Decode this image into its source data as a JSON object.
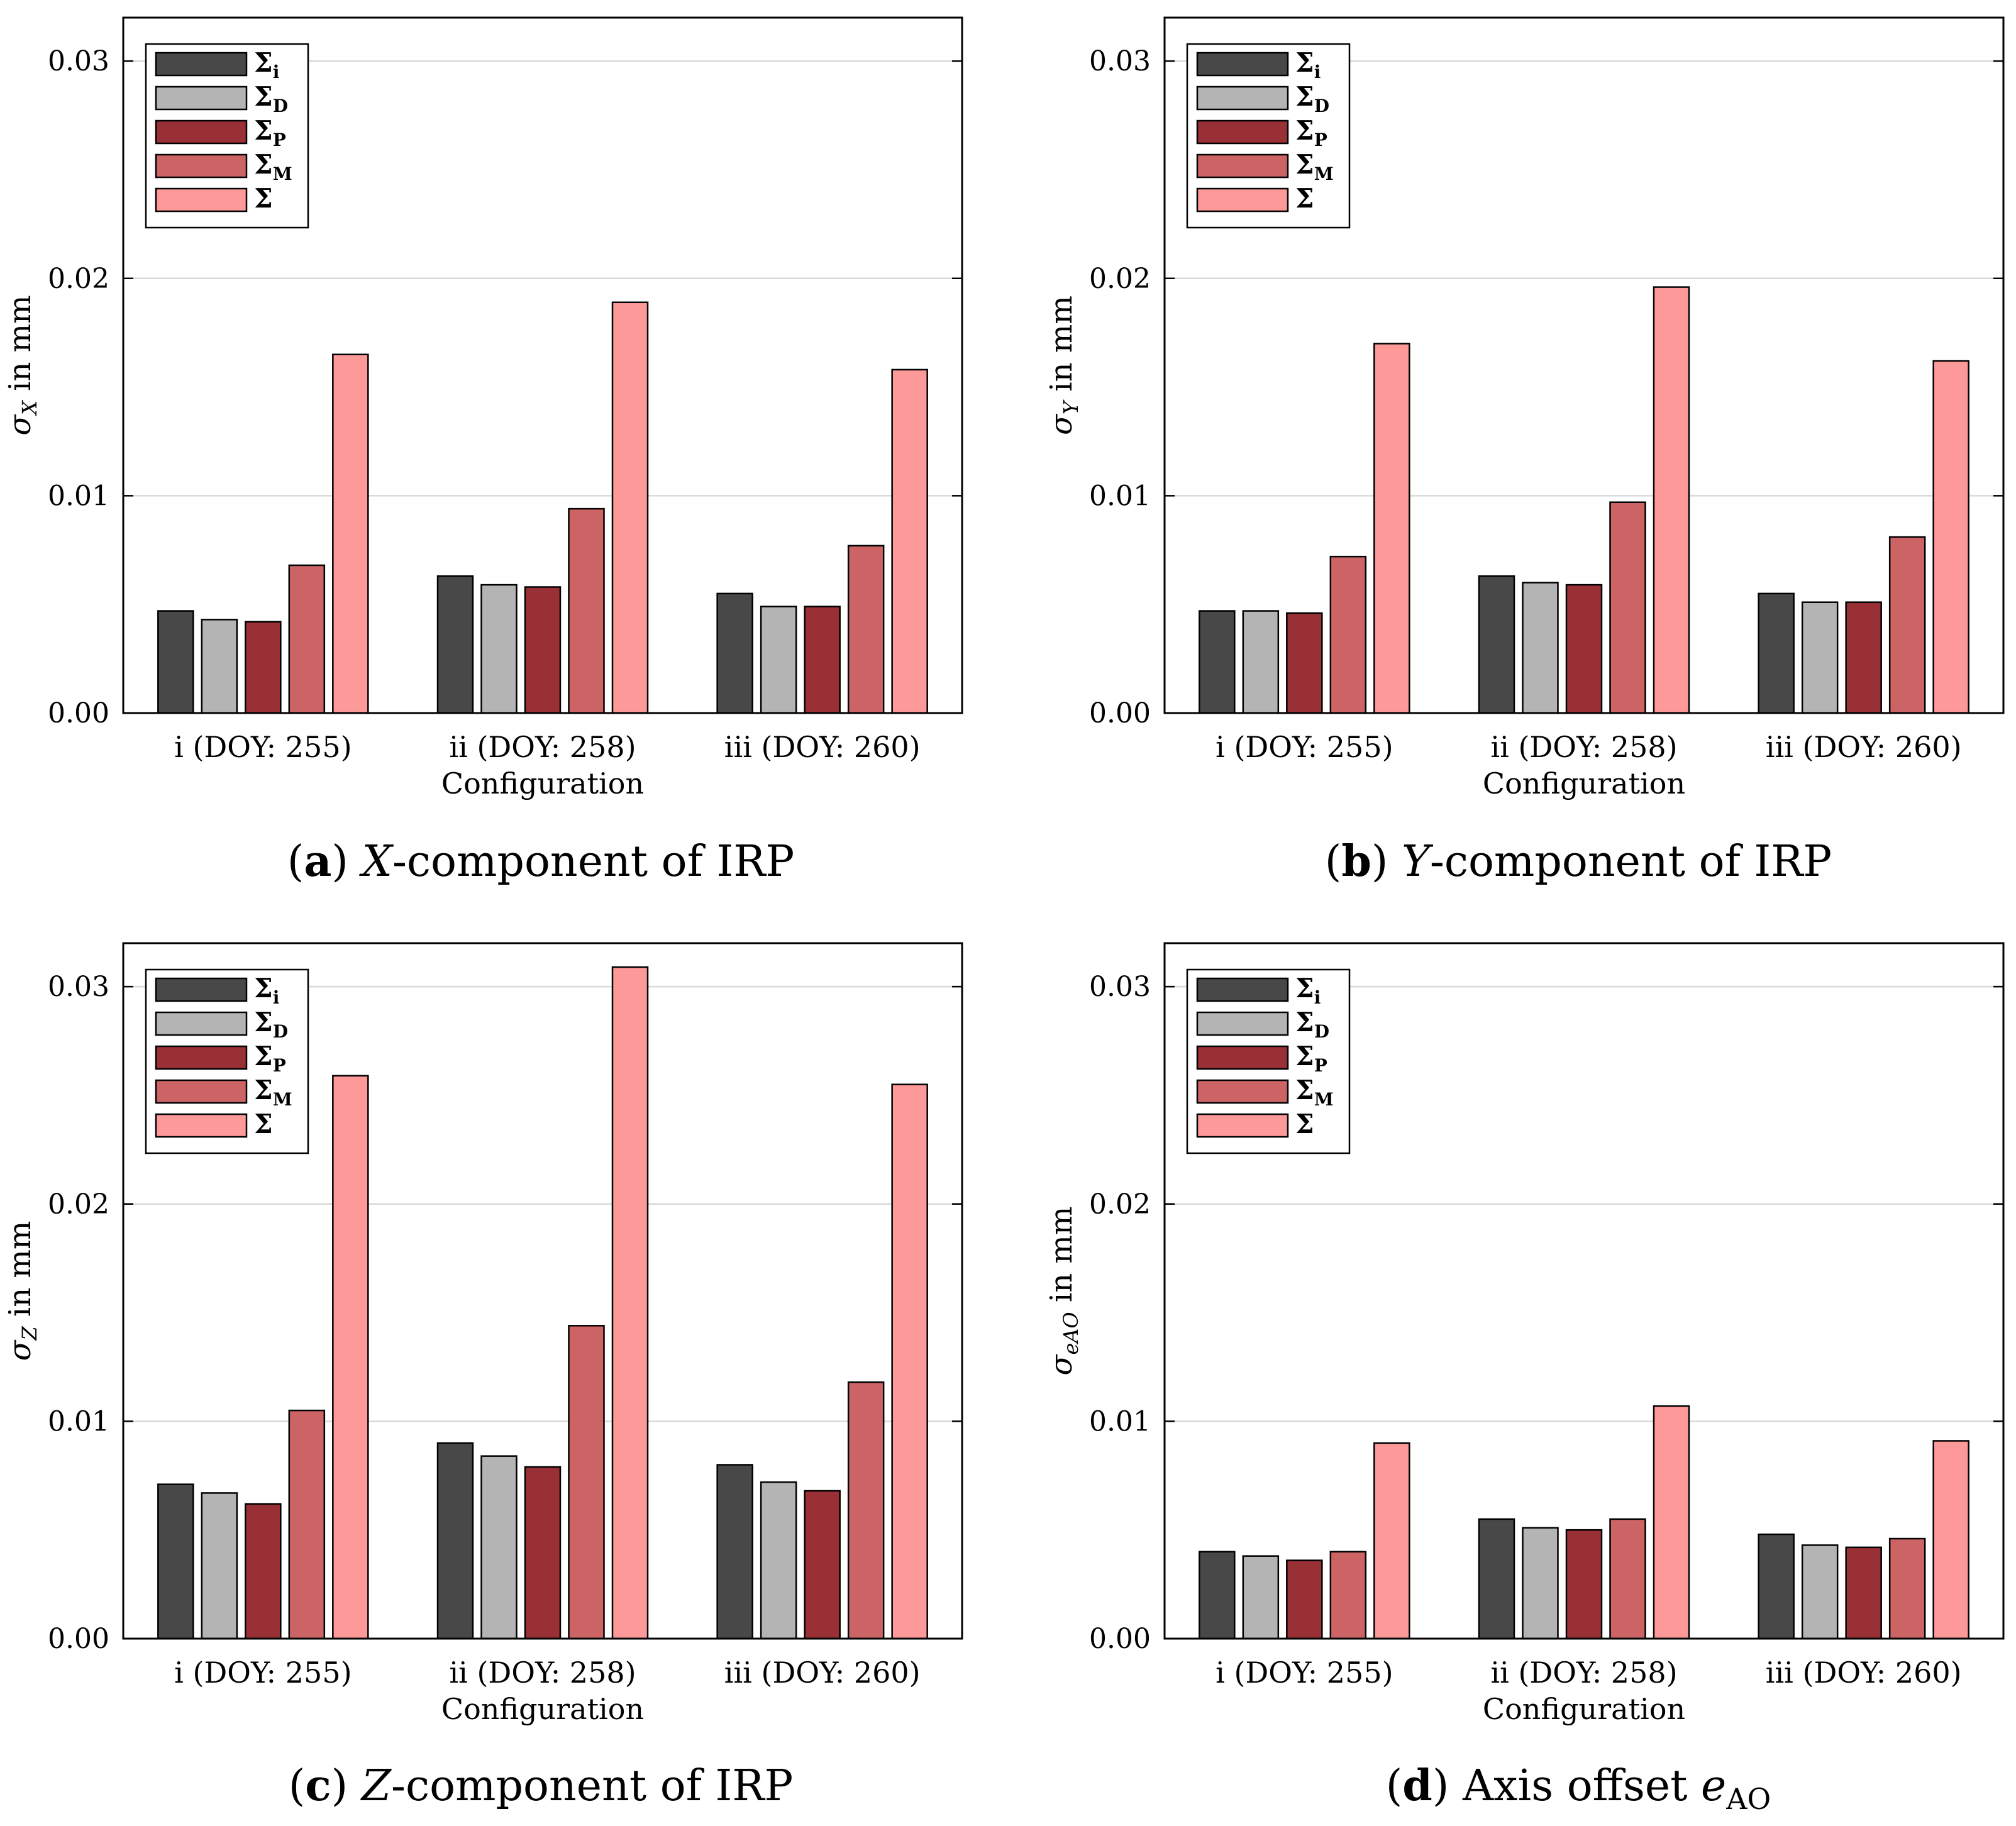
{
  "chart_data": [
    {
      "type": "bar",
      "panel": "a",
      "caption": {
        "letter": "a",
        "variable": "X",
        "rest": "-component of IRP"
      },
      "title": "",
      "xlabel": "Configuration",
      "ylabel": "σ_X in mm",
      "ylabel_symbol": "σ",
      "ylabel_sub": "X",
      "ylabel_rest": " in mm",
      "ylim": [
        0,
        0.032
      ],
      "yticks": [
        "0.00",
        "0.01",
        "0.02",
        "0.03"
      ],
      "categories": [
        "i (DOY: 255)",
        "ii (DOY: 258)",
        "iii (DOY: 260)"
      ],
      "series": [
        {
          "name": "Σi",
          "values": [
            0.0047,
            0.0063,
            0.0055
          ]
        },
        {
          "name": "ΣD",
          "values": [
            0.0043,
            0.0059,
            0.0049
          ]
        },
        {
          "name": "ΣP",
          "values": [
            0.0042,
            0.0058,
            0.0049
          ]
        },
        {
          "name": "ΣM",
          "values": [
            0.0068,
            0.0094,
            0.0077
          ]
        },
        {
          "name": "Σ",
          "values": [
            0.0165,
            0.0189,
            0.0158
          ]
        }
      ]
    },
    {
      "type": "bar",
      "panel": "b",
      "caption": {
        "letter": "b",
        "variable": "Y",
        "rest": "-component of IRP"
      },
      "title": "",
      "xlabel": "Configuration",
      "ylabel": "σ_Y in mm",
      "ylabel_symbol": "σ",
      "ylabel_sub": "Y",
      "ylabel_rest": " in mm",
      "ylim": [
        0,
        0.032
      ],
      "yticks": [
        "0.00",
        "0.01",
        "0.02",
        "0.03"
      ],
      "categories": [
        "i (DOY: 255)",
        "ii (DOY: 258)",
        "iii (DOY: 260)"
      ],
      "series": [
        {
          "name": "Σi",
          "values": [
            0.0047,
            0.0063,
            0.0055
          ]
        },
        {
          "name": "ΣD",
          "values": [
            0.0047,
            0.006,
            0.0051
          ]
        },
        {
          "name": "ΣP",
          "values": [
            0.0046,
            0.0059,
            0.0051
          ]
        },
        {
          "name": "ΣM",
          "values": [
            0.0072,
            0.0097,
            0.0081
          ]
        },
        {
          "name": "Σ",
          "values": [
            0.017,
            0.0196,
            0.0162
          ]
        }
      ]
    },
    {
      "type": "bar",
      "panel": "c",
      "caption": {
        "letter": "c",
        "variable": "Z",
        "rest": "-component of IRP"
      },
      "title": "",
      "xlabel": "Configuration",
      "ylabel": "σ_Z in mm",
      "ylabel_symbol": "σ",
      "ylabel_sub": "Z",
      "ylabel_rest": " in mm",
      "ylim": [
        0,
        0.032
      ],
      "yticks": [
        "0.00",
        "0.01",
        "0.02",
        "0.03"
      ],
      "categories": [
        "i (DOY: 255)",
        "ii (DOY: 258)",
        "iii (DOY: 260)"
      ],
      "series": [
        {
          "name": "Σi",
          "values": [
            0.0071,
            0.009,
            0.008
          ]
        },
        {
          "name": "ΣD",
          "values": [
            0.0067,
            0.0084,
            0.0072
          ]
        },
        {
          "name": "ΣP",
          "values": [
            0.0062,
            0.0079,
            0.0068
          ]
        },
        {
          "name": "ΣM",
          "values": [
            0.0105,
            0.0144,
            0.0118
          ]
        },
        {
          "name": "Σ",
          "values": [
            0.0259,
            0.0309,
            0.0255
          ]
        }
      ]
    },
    {
      "type": "bar",
      "panel": "d",
      "caption": {
        "letter": "d",
        "variable": "",
        "rest": "Axis offset ",
        "symbol": "e",
        "symbol_sub": "AO"
      },
      "title": "",
      "xlabel": "Configuration",
      "ylabel": "σ_eAO in mm",
      "ylabel_symbol": "σ",
      "ylabel_sub": "eAO",
      "ylabel_rest": " in mm",
      "ylim": [
        0,
        0.032
      ],
      "yticks": [
        "0.00",
        "0.01",
        "0.02",
        "0.03"
      ],
      "categories": [
        "i (DOY: 255)",
        "ii (DOY: 258)",
        "iii (DOY: 260)"
      ],
      "series": [
        {
          "name": "Σi",
          "values": [
            0.004,
            0.0055,
            0.0048
          ]
        },
        {
          "name": "ΣD",
          "values": [
            0.0038,
            0.0051,
            0.0043
          ]
        },
        {
          "name": "ΣP",
          "values": [
            0.0036,
            0.005,
            0.0042
          ]
        },
        {
          "name": "ΣM",
          "values": [
            0.004,
            0.0055,
            0.0046
          ]
        },
        {
          "name": "Σ",
          "values": [
            0.009,
            0.0107,
            0.0091
          ]
        }
      ]
    }
  ],
  "legend": {
    "placement": "top-left",
    "entries": [
      {
        "base": "Σ",
        "sub": "i",
        "color": "#484848"
      },
      {
        "base": "Σ",
        "sub": "D",
        "color": "#b4b4b4"
      },
      {
        "base": "Σ",
        "sub": "P",
        "color": "#983035"
      },
      {
        "base": "Σ",
        "sub": "M",
        "color": "#cc6466"
      },
      {
        "base": "Σ",
        "sub": "",
        "color": "#fe9999"
      }
    ]
  },
  "colors": {
    "series": [
      "#484848",
      "#b4b4b4",
      "#983035",
      "#cc6466",
      "#fe9999"
    ],
    "grid": "#d9d9d9",
    "axis": "#000000"
  }
}
